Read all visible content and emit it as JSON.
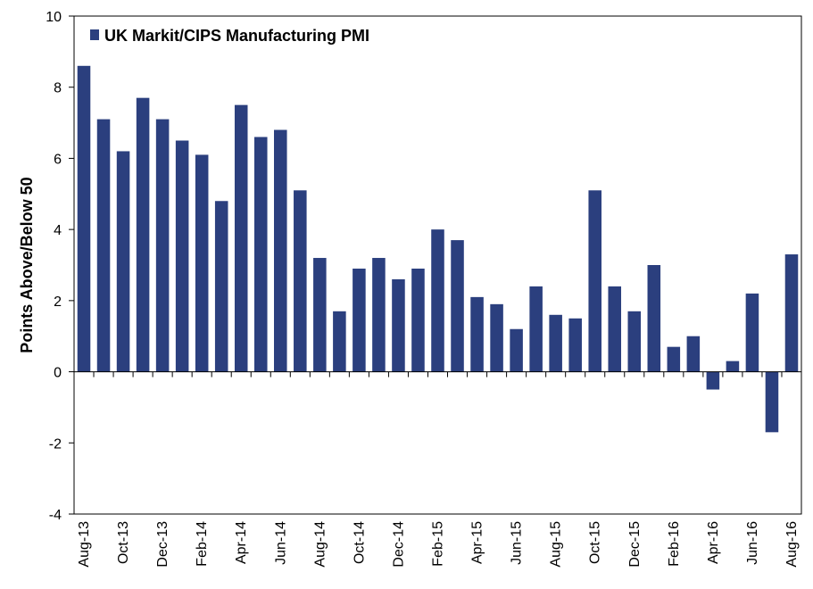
{
  "chart_data": {
    "type": "bar",
    "title": "",
    "xlabel": "",
    "ylabel": "Points Above/Below  50",
    "ylim": [
      -4,
      10
    ],
    "yticks": [
      -4,
      -2,
      0,
      2,
      4,
      6,
      8,
      10
    ],
    "grid": false,
    "legend_position": "top-left",
    "bar_color": "#2B3F7E",
    "series": [
      {
        "name": "UK Markit/CIPS Manufacturing PMI",
        "values": [
          8.6,
          7.1,
          6.2,
          7.7,
          7.1,
          6.5,
          6.1,
          4.8,
          7.5,
          6.6,
          6.8,
          5.1,
          3.2,
          1.7,
          2.9,
          3.2,
          2.6,
          2.9,
          4.0,
          3.7,
          2.1,
          1.9,
          1.2,
          2.4,
          1.6,
          1.5,
          5.1,
          2.4,
          1.7,
          3.0,
          0.7,
          1.0,
          -0.5,
          0.3,
          2.2,
          -1.7,
          3.3
        ]
      }
    ],
    "categories": [
      "Aug-13",
      "Sep-13",
      "Oct-13",
      "Nov-13",
      "Dec-13",
      "Jan-14",
      "Feb-14",
      "Mar-14",
      "Apr-14",
      "May-14",
      "Jun-14",
      "Jul-14",
      "Aug-14",
      "Sep-14",
      "Oct-14",
      "Nov-14",
      "Dec-14",
      "Jan-15",
      "Feb-15",
      "Mar-15",
      "Apr-15",
      "May-15",
      "Jun-15",
      "Jul-15",
      "Aug-15",
      "Sep-15",
      "Oct-15",
      "Nov-15",
      "Dec-15",
      "Jan-16",
      "Feb-16",
      "Mar-16",
      "Apr-16",
      "May-16",
      "Jun-16",
      "Jul-16",
      "Aug-16"
    ],
    "xtick_labels": [
      "Aug-13",
      "",
      "Oct-13",
      "",
      "Dec-13",
      "",
      "Feb-14",
      "",
      "Apr-14",
      "",
      "Jun-14",
      "",
      "Aug-14",
      "",
      "Oct-14",
      "",
      "Dec-14",
      "",
      "Feb-15",
      "",
      "Apr-15",
      "",
      "Jun-15",
      "",
      "Aug-15",
      "",
      "Oct-15",
      "",
      "Dec-15",
      "",
      "Feb-16",
      "",
      "Apr-16",
      "",
      "Jun-16",
      "",
      "Aug-16"
    ]
  }
}
